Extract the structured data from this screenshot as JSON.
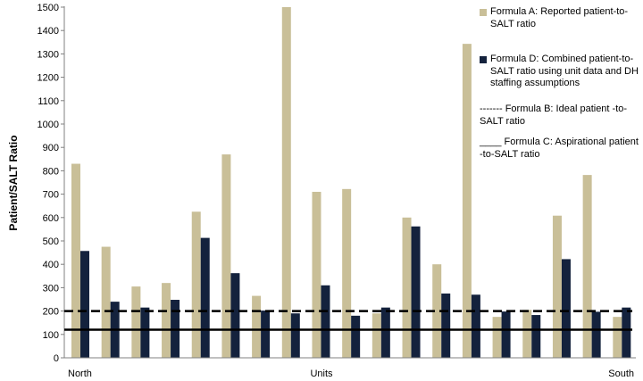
{
  "chart_data": {
    "type": "bar",
    "ylabel": "Patient/SALT Ratio",
    "xlabel": "Units",
    "x_end_labels": {
      "left": "North",
      "right": "South"
    },
    "ylim": [
      0,
      1500
    ],
    "yticks": [
      0,
      100,
      200,
      300,
      400,
      500,
      600,
      700,
      800,
      900,
      1000,
      1100,
      1200,
      1300,
      1400,
      1500
    ],
    "grid": false,
    "legend_position": "right",
    "series": [
      {
        "name": "Formula A: Reported patient-to-SALT ratio",
        "color": "#c9bf98",
        "values": [
          830,
          475,
          305,
          320,
          625,
          870,
          265,
          1500,
          710,
          722,
          190,
          600,
          400,
          1343,
          175,
          205,
          608,
          782,
          175
        ]
      },
      {
        "name": "Formula D: Combined patient-to-SALT ratio using unit data and DH staffing assumptions",
        "color": "#14223d",
        "values": [
          457,
          240,
          215,
          248,
          513,
          362,
          202,
          190,
          310,
          180,
          215,
          562,
          275,
          270,
          198,
          183,
          422,
          197,
          215
        ]
      }
    ],
    "reference_lines": [
      {
        "name": "------- Formula B: Ideal patient -to-SALT ratio",
        "value": 200,
        "style": "dashed",
        "color": "#000000"
      },
      {
        "name": "____ Formula C: Aspirational patient -to-SALT ratio",
        "value": 120,
        "style": "solid",
        "color": "#000000"
      }
    ]
  }
}
